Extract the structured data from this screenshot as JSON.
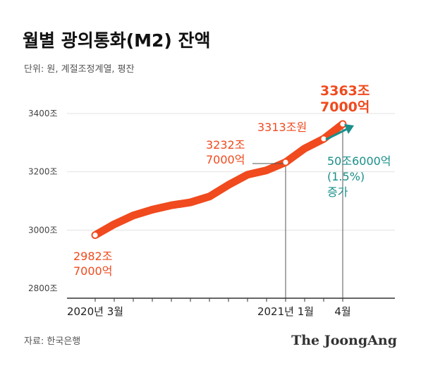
{
  "title": "월별 광의통화(M2) 잔액",
  "subtitle": "단위: 원, 계절조정계열, 평잔",
  "source": "자료: 한국은행",
  "brand": "The JoongAng",
  "colors": {
    "line": "#f04a1e",
    "label": "#f04a1e",
    "increase": "#1a8f8a",
    "axis": "#333333",
    "grid": "#e3e3e3",
    "text": "#222222",
    "muted": "#555555"
  },
  "chart_data": {
    "type": "line",
    "title": "월별 광의통화(M2) 잔액",
    "ylim": [
      2800,
      3400
    ],
    "y_ticks": [
      "2800조",
      "3000조",
      "3200조",
      "3400조"
    ],
    "x_tick_labels": [
      {
        "index": 0,
        "label": "2020년 3월"
      },
      {
        "index": 10,
        "label": "2021년 1월"
      },
      {
        "index": 13,
        "label": "4월"
      }
    ],
    "series": [
      {
        "values": [
          2982.7,
          3020,
          3050,
          3070,
          3085,
          3095,
          3115,
          3155,
          3190,
          3205,
          3232.7,
          3280,
          3313,
          3363.7
        ]
      }
    ],
    "annotations": {
      "start": [
        "2982조",
        "7000억"
      ],
      "jan": [
        "3232조",
        "7000억"
      ],
      "mar": "3313조원",
      "apr": [
        "3363조",
        "7000억"
      ],
      "increase": [
        "50조6000억",
        "(1.5%)",
        "증가"
      ]
    }
  }
}
